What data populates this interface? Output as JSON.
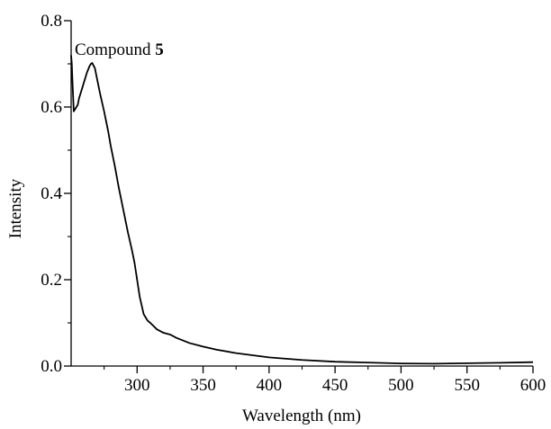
{
  "chart_data": {
    "type": "line",
    "xlabel": "Wavelength (nm)",
    "ylabel": "Intensity",
    "xlim": [
      250,
      600
    ],
    "ylim": [
      0.0,
      0.8
    ],
    "x_ticks": [
      300,
      350,
      400,
      450,
      500,
      550,
      600
    ],
    "x_tick_labels": [
      "300",
      "350",
      "400",
      "450",
      "500",
      "550",
      "600"
    ],
    "y_ticks": [
      0.0,
      0.2,
      0.4,
      0.6,
      0.8
    ],
    "y_tick_labels": [
      "0.0",
      "0.2",
      "0.4",
      "0.6",
      "0.8"
    ],
    "grid": false,
    "annotation": {
      "prefix": "Compound ",
      "bold": "5"
    },
    "series": [
      {
        "x": [
          250,
          250.5,
          251,
          252,
          253,
          254,
          255,
          256,
          258,
          260,
          262,
          264,
          265,
          266,
          268,
          270,
          272,
          275,
          278,
          280,
          283,
          286,
          290,
          293,
          296,
          298,
          300,
          302,
          305,
          308,
          310,
          315,
          320,
          325,
          330,
          340,
          350,
          360,
          375,
          400,
          425,
          450,
          475,
          500,
          525,
          550,
          575,
          600
        ],
        "y": [
          0.72,
          0.7,
          0.66,
          0.59,
          0.595,
          0.6,
          0.605,
          0.62,
          0.64,
          0.66,
          0.68,
          0.695,
          0.7,
          0.702,
          0.69,
          0.66,
          0.63,
          0.59,
          0.545,
          0.51,
          0.465,
          0.415,
          0.355,
          0.31,
          0.27,
          0.24,
          0.2,
          0.16,
          0.12,
          0.105,
          0.1,
          0.085,
          0.077,
          0.073,
          0.065,
          0.053,
          0.045,
          0.038,
          0.03,
          0.02,
          0.014,
          0.01,
          0.008,
          0.006,
          0.0055,
          0.0065,
          0.0075,
          0.009
        ]
      }
    ]
  }
}
